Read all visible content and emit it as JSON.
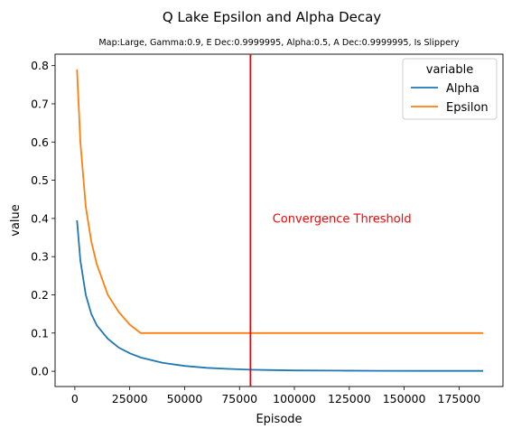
{
  "chart_data": {
    "type": "line",
    "title": "Q Lake Epsilon and Alpha Decay",
    "subtitle": "Map:Large, Gamma:0.9, E Dec:0.9999995, Alpha:0.5, A Dec:0.9999995, Is Slippery",
    "xlabel": "Episode",
    "ylabel": "value",
    "xlim": [
      -9000,
      195000
    ],
    "ylim": [
      -0.04,
      0.83
    ],
    "xticks": [
      0,
      25000,
      50000,
      75000,
      100000,
      125000,
      150000,
      175000
    ],
    "yticks": [
      0.0,
      0.1,
      0.2,
      0.3,
      0.4,
      0.5,
      0.6,
      0.7,
      0.8
    ],
    "xtick_labels": [
      "0",
      "25000",
      "50000",
      "75000",
      "100000",
      "125000",
      "150000",
      "175000"
    ],
    "ytick_labels": [
      "0.0",
      "0.1",
      "0.2",
      "0.3",
      "0.4",
      "0.5",
      "0.6",
      "0.7",
      "0.8"
    ],
    "grid": false,
    "legend": {
      "title": "variable",
      "position": "top-right"
    },
    "series": [
      {
        "name": "Alpha",
        "color": "#1f77b4",
        "x": [
          1000,
          2500,
          5000,
          7500,
          10000,
          15000,
          20000,
          25000,
          30000,
          40000,
          50000,
          60000,
          70000,
          80000,
          90000,
          100000,
          120000,
          140000,
          160000,
          186000
        ],
        "y": [
          0.395,
          0.29,
          0.2,
          0.15,
          0.12,
          0.085,
          0.062,
          0.047,
          0.036,
          0.022,
          0.014,
          0.009,
          0.006,
          0.004,
          0.003,
          0.002,
          0.0015,
          0.0012,
          0.001,
          0.001
        ]
      },
      {
        "name": "Epsilon",
        "color": "#ff7f0e",
        "x": [
          1000,
          2500,
          5000,
          7500,
          10000,
          15000,
          20000,
          25000,
          30000,
          40000,
          60000,
          80000,
          100000,
          120000,
          140000,
          160000,
          186000
        ],
        "y": [
          0.79,
          0.6,
          0.43,
          0.34,
          0.28,
          0.2,
          0.155,
          0.122,
          0.1,
          0.1,
          0.1,
          0.1,
          0.1,
          0.1,
          0.1,
          0.1,
          0.1
        ]
      }
    ],
    "annotations": [
      {
        "type": "vline",
        "x": 80000,
        "color": "#e8000b"
      },
      {
        "type": "text",
        "text": "Convergence Threshold",
        "x": 90000,
        "y": 0.4,
        "color": "#ff0000"
      }
    ]
  }
}
